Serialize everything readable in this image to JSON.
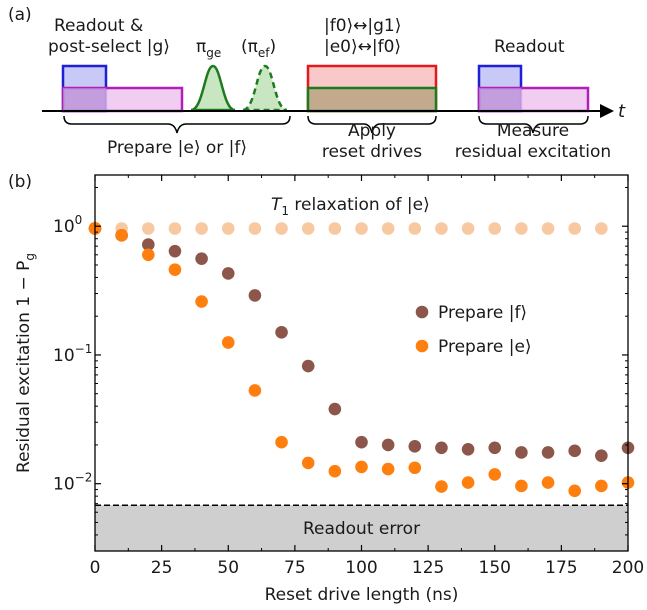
{
  "panel_a": {
    "label": "(a)",
    "readout_postselect_line1": "Readout &",
    "readout_postselect_line2": "post-select |g⟩",
    "pi_ge": "π",
    "pi_ge_sub": "ge",
    "pi_ef": "(π",
    "pi_ef_sub": "ef",
    "pi_ef_close": ")",
    "drive_label_1": "|f0⟩↔|g1⟩",
    "drive_label_2": "|e0⟩↔|f0⟩",
    "readout": "Readout",
    "time_axis": "t",
    "prepare": "Prepare |e⟩ or |f⟩",
    "apply_1": "Apply",
    "apply_2": "reset drives",
    "measure_1": "Measure",
    "measure_2": "residual excitation",
    "colors": {
      "blue": "#1f1fd6",
      "blue_fill": "#c9c9f7",
      "magenta": "#b01fb8",
      "magenta_fill": "#efc6ef",
      "red": "#e5191c",
      "red_fill": "#f9c9c9",
      "green": "#1e7a1e",
      "green_fill": "#c8e6c2",
      "tan_fill": "#c4aa8c"
    }
  },
  "panel_b": {
    "label": "(b)",
    "annotation": "T",
    "annotation_sub": "1",
    "annotation_rest": " relaxation of |e⟩",
    "readout_error_label": "Readout error"
  },
  "chart_data": {
    "type": "scatter",
    "title": "",
    "xlabel": "Reset drive length (ns)",
    "ylabel": "Residual excitation 1 − P",
    "ylabel_sub": "g",
    "xlim": [
      0,
      200
    ],
    "ylim": [
      0.003,
      2.5
    ],
    "yscale": "log",
    "x_ticks": [
      0,
      25,
      50,
      75,
      100,
      125,
      150,
      175,
      200
    ],
    "y_ticks": [
      {
        "value": 1,
        "base": "10",
        "exp": "0"
      },
      {
        "value": 0.1,
        "base": "10",
        "exp": "−1"
      },
      {
        "value": 0.01,
        "base": "10",
        "exp": "−2"
      }
    ],
    "readout_error": 0.0068,
    "legend_position": "center-right",
    "series": [
      {
        "name": "",
        "color": "#f8c9a0",
        "x": [
          0,
          10,
          20,
          30,
          40,
          50,
          60,
          70,
          80,
          90,
          100,
          110,
          120,
          130,
          140,
          150,
          160,
          170,
          180,
          190
        ],
        "y": [
          0.97,
          0.96,
          0.96,
          0.96,
          0.96,
          0.96,
          0.96,
          0.96,
          0.96,
          0.96,
          0.96,
          0.96,
          0.96,
          0.96,
          0.96,
          0.96,
          0.96,
          0.96,
          0.96,
          0.96
        ]
      },
      {
        "name": "Prepare |f⟩",
        "color": "#8c564b",
        "x": [
          0,
          10,
          20,
          30,
          40,
          50,
          60,
          70,
          80,
          90,
          100,
          110,
          120,
          130,
          140,
          150,
          160,
          170,
          180,
          190,
          200
        ],
        "y": [
          0.96,
          0.85,
          0.72,
          0.64,
          0.56,
          0.43,
          0.29,
          0.15,
          0.082,
          0.038,
          0.021,
          0.02,
          0.0195,
          0.019,
          0.0185,
          0.019,
          0.0175,
          0.0175,
          0.018,
          0.0165,
          0.019
        ]
      },
      {
        "name": "Prepare |e⟩",
        "color": "#ff7f0e",
        "x": [
          0,
          10,
          20,
          30,
          40,
          50,
          60,
          70,
          80,
          90,
          100,
          110,
          120,
          130,
          140,
          150,
          160,
          170,
          180,
          190,
          200
        ],
        "y": [
          0.96,
          0.85,
          0.6,
          0.46,
          0.26,
          0.125,
          0.053,
          0.021,
          0.0145,
          0.0125,
          0.0135,
          0.013,
          0.0133,
          0.0095,
          0.0102,
          0.0118,
          0.0096,
          0.0102,
          0.0088,
          0.0096,
          0.0102
        ]
      }
    ]
  }
}
